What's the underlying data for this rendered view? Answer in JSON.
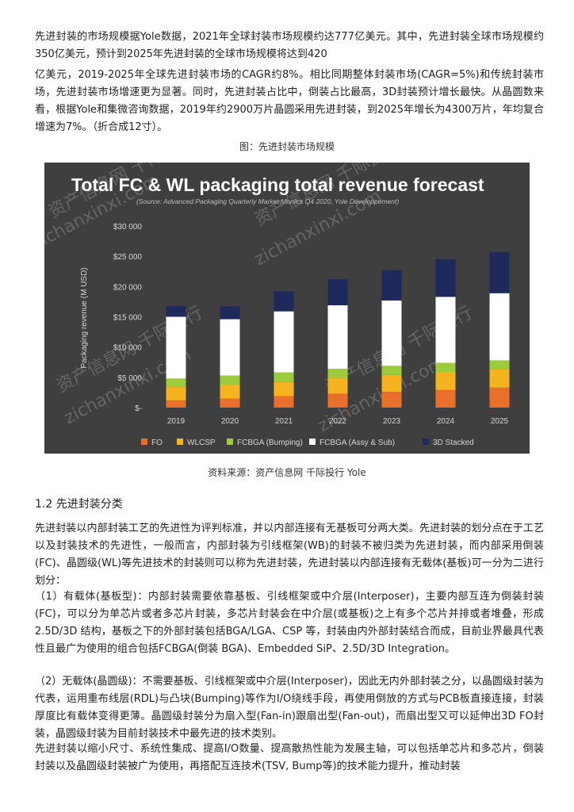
{
  "paragraphs": {
    "p1": "先进封装的市场规模据Yole数据，2021年全球封装市场规模约达777亿美元。其中，先进封装全球市场规模约350亿美元，预计到2025年先进封装的全球市场规模将达到420",
    "p2": "亿美元，2019-2025年全球先进封装市场的CAGR约8%。相比同期整体封装市场(CAGR=5%)和传统封装市场，先进封装市场增速更为显著。同时，先进封装占比中，倒装占比最高，3D封装预计增长最快。从晶圆数来看，根据Yole和集微咨询数据，2019年约2900万片晶圆采用先进封装，到2025年增长为4300万片，年均复合增速为7%。（折合成12寸）。",
    "p3": "先进封装以内部封装工艺的先进性为评判标准，并以内部连接有无基板可分两大类。先进封装的划分点在于工艺以及封装技术的先进性，一般而言，内部封装为引线框架(WB)的封装不被归类为先进封装，而内部采用倒装(FC)、晶圆级(WL)等先进技术的封装则可以称为先进封装，先进封装以内部连接有无载体(基板)可一分为二进行划分：",
    "p4": "（1）有载体(基板型)：内部封装需要依靠基板、引线框架或中介层(Interposer)，主要内部互连为倒装封装(FC)，可以分为单芯片或者多芯片封装，多芯片封装会在中介层(或基板)之上有多个芯片并排或者堆叠，形成2.5D/3D 结构，基板之下的外部封装包括BGA/LGA、CSP 等，封装由内外部封装结合而成，目前业界最具代表性且最广为使用的组合包括FCBGA(倒装 BGA)、Embedded SiP、2.5D/3D Integration。",
    "p5": "（2）无载体(晶圆级)：不需要基板、引线框架或中介层(Interposer)，因此无内外部封装之分，以晶圆级封装为代表，运用重布线层(RDL)与凸块(Bumping)等作为I/O绕线手段，再使用倒放的方式与PCB板直接连接，封装厚度比有载体变得更薄。晶圆级封装分为扇入型(Fan-in)跟扇出型(Fan-out)，而扇出型又可以延伸出3D FO封装，晶圆级封装为目前封装技术中最先进的技术类别。",
    "p6": "先进封装以缩小尺寸、系统性集成、提高I/O数量、提高散热性能为发展主轴，可以包括单芯片和多芯片，倒装封装以及晶圆级封装被广为使用，再搭配互连技术(TSV, Bump等)的技术能力提升，推动封装"
  },
  "figure_caption": "图：先进封装市场规模",
  "source_caption": "资料来源：资产信息网 千际投行 Yole",
  "section_heading": "1.2 先进封装分类",
  "watermark": {
    "cn": "资产信息网 千际投行",
    "url": "zichanxinxi.com"
  },
  "colors": {
    "chart_bg": "#3f3f3f",
    "FO": "#e8702a",
    "WLCSP": "#f5b41e",
    "FCBGA_Bumping": "#9ccc3c",
    "FCBGA_Assy": "#ffffff",
    "3D_Stacked": "#1f2a5c"
  },
  "chart_data": {
    "type": "bar",
    "stacked": true,
    "title": "Total FC & WL packaging total revenue forecast",
    "subtitle": "(Source: Advanced Packaging Quarterly Market Monitor Q4 2020, Yole Développement)",
    "xlabel": "",
    "ylabel": "Packaging revenue (M USD)",
    "ylim": [
      0,
      30000
    ],
    "yticks": [
      "$-",
      "$5 000",
      "$10 000",
      "$15 000",
      "$20 000",
      "$25 000",
      "$30 000"
    ],
    "categories": [
      "2019",
      "2020",
      "2021",
      "2022",
      "2023",
      "2024",
      "2025"
    ],
    "series": [
      {
        "name": "FO",
        "values": [
          1200,
          1500,
          1900,
          2300,
          2600,
          2900,
          3300
        ]
      },
      {
        "name": "WLCSP",
        "values": [
          2200,
          2300,
          2400,
          2600,
          2800,
          3000,
          3100
        ]
      },
      {
        "name": "FCBGA (Bumping)",
        "values": [
          1400,
          1500,
          1500,
          1500,
          1500,
          1500,
          1400
        ]
      },
      {
        "name": "FCBGA (Assy & Sub)",
        "values": [
          10200,
          9300,
          10100,
          10500,
          10800,
          10900,
          11100
        ]
      },
      {
        "name": "3D Stacked",
        "values": [
          1800,
          2100,
          3300,
          4300,
          5000,
          6200,
          6800
        ]
      }
    ],
    "legend": "bottom"
  }
}
